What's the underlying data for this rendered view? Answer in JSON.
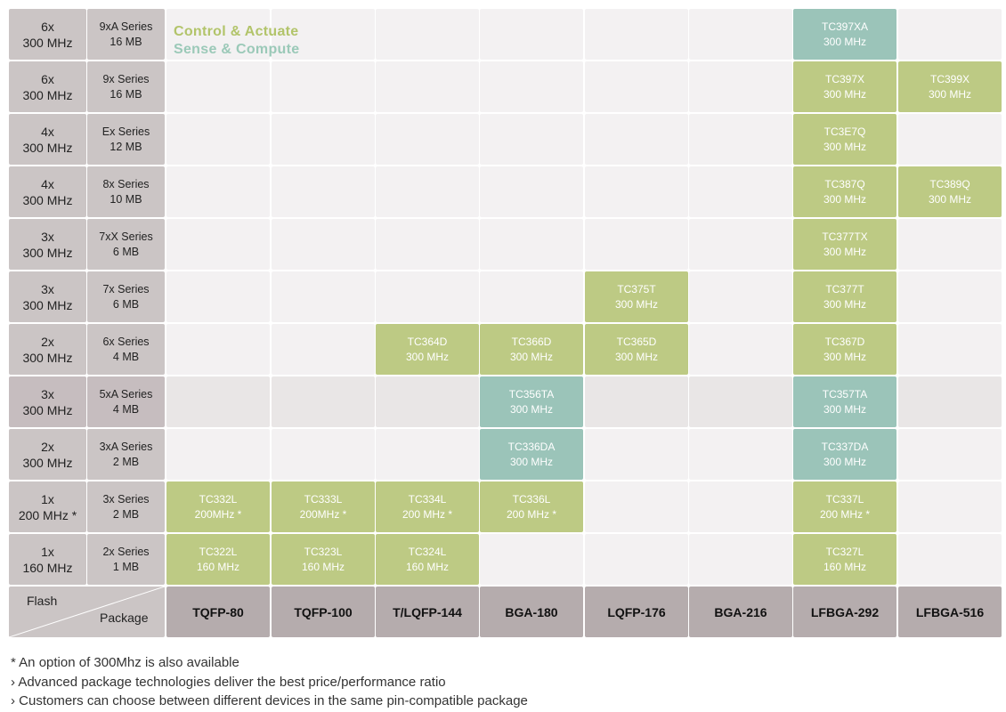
{
  "legend": {
    "control": "Control & Actuate",
    "sense": "Sense & Compute",
    "control_color": "#b2c46a",
    "sense_color": "#9bc9b8"
  },
  "rows": [
    {
      "cores": "6x",
      "freq": "300 MHz",
      "series": "9xA Series",
      "flash": "16 MB",
      "cells": [
        null,
        null,
        null,
        null,
        null,
        null,
        {
          "name": "TC397XA",
          "freq": "300 MHz",
          "type": "sense"
        },
        null
      ]
    },
    {
      "cores": "6x",
      "freq": "300 MHz",
      "series": "9x Series",
      "flash": "16 MB",
      "cells": [
        null,
        null,
        null,
        null,
        null,
        null,
        {
          "name": "TC397X",
          "freq": "300 MHz",
          "type": "control"
        },
        {
          "name": "TC399X",
          "freq": "300 MHz",
          "type": "control"
        }
      ]
    },
    {
      "cores": "4x",
      "freq": "300 MHz",
      "series": "Ex Series",
      "flash": "12 MB",
      "cells": [
        null,
        null,
        null,
        null,
        null,
        null,
        {
          "name": "TC3E7Q",
          "freq": "300 MHz",
          "type": "control"
        },
        null
      ]
    },
    {
      "cores": "4x",
      "freq": "300 MHz",
      "series": "8x Series",
      "flash": "10 MB",
      "cells": [
        null,
        null,
        null,
        null,
        null,
        null,
        {
          "name": "TC387Q",
          "freq": "300 MHz",
          "type": "control"
        },
        {
          "name": "TC389Q",
          "freq": "300 MHz",
          "type": "control"
        }
      ]
    },
    {
      "cores": "3x",
      "freq": "300 MHz",
      "series": "7xX Series",
      "flash": "6 MB",
      "cells": [
        null,
        null,
        null,
        null,
        null,
        null,
        {
          "name": "TC377TX",
          "freq": "300 MHz",
          "type": "control"
        },
        null
      ]
    },
    {
      "cores": "3x",
      "freq": "300 MHz",
      "series": "7x Series",
      "flash": "6 MB",
      "cells": [
        null,
        null,
        null,
        null,
        {
          "name": "TC375T",
          "freq": "300 MHz",
          "type": "control"
        },
        null,
        {
          "name": "TC377T",
          "freq": "300 MHz",
          "type": "control"
        },
        null
      ]
    },
    {
      "cores": "2x",
      "freq": "300 MHz",
      "series": "6x Series",
      "flash": "4 MB",
      "cells": [
        null,
        null,
        {
          "name": "TC364D",
          "freq": "300 MHz",
          "type": "control"
        },
        {
          "name": "TC366D",
          "freq": "300 MHz",
          "type": "control"
        },
        {
          "name": "TC365D",
          "freq": "300 MHz",
          "type": "control"
        },
        null,
        {
          "name": "TC367D",
          "freq": "300 MHz",
          "type": "control"
        },
        null
      ]
    },
    {
      "cores": "3x",
      "freq": "300 MHz",
      "series": "5xA Series",
      "flash": "4 MB",
      "alt": true,
      "cells": [
        null,
        null,
        null,
        {
          "name": "TC356TA",
          "freq": "300 MHz",
          "type": "sense"
        },
        null,
        null,
        {
          "name": "TC357TA",
          "freq": "300 MHz",
          "type": "sense"
        },
        null
      ]
    },
    {
      "cores": "2x",
      "freq": "300 MHz",
      "series": "3xA Series",
      "flash": "2 MB",
      "cells": [
        null,
        null,
        null,
        {
          "name": "TC336DA",
          "freq": "300 MHz",
          "type": "sense"
        },
        null,
        null,
        {
          "name": "TC337DA",
          "freq": "300 MHz",
          "type": "sense"
        },
        null
      ]
    },
    {
      "cores": "1x",
      "freq": "200 MHz *",
      "series": "3x Series",
      "flash": "2 MB",
      "cells": [
        {
          "name": "TC332L",
          "freq": "200MHz *",
          "type": "control"
        },
        {
          "name": "TC333L",
          "freq": "200MHz *",
          "type": "control"
        },
        {
          "name": "TC334L",
          "freq": "200 MHz *",
          "type": "control"
        },
        {
          "name": "TC336L",
          "freq": "200 MHz *",
          "type": "control"
        },
        null,
        null,
        {
          "name": "TC337L",
          "freq": "200 MHz *",
          "type": "control"
        },
        null
      ]
    },
    {
      "cores": "1x",
      "freq": "160 MHz",
      "series": "2x Series",
      "flash": "1 MB",
      "cells": [
        {
          "name": "TC322L",
          "freq": "160 MHz",
          "type": "control"
        },
        {
          "name": "TC323L",
          "freq": "160 MHz",
          "type": "control"
        },
        {
          "name": "TC324L",
          "freq": "160 MHz",
          "type": "control"
        },
        null,
        null,
        null,
        {
          "name": "TC327L",
          "freq": "160 MHz",
          "type": "control"
        },
        null
      ]
    }
  ],
  "corner": {
    "flash": "Flash",
    "package": "Package"
  },
  "packages": [
    "TQFP-80",
    "TQFP-100",
    "T/LQFP-144",
    "BGA-180",
    "LQFP-176",
    "BGA-216",
    "LFBGA-292",
    "LFBGA-516"
  ],
  "notes": [
    "*  An option of 300Mhz is also available",
    "›  Advanced package technologies deliver  the best price/performance ratio",
    "›  Customers can choose between different  devices in the same pin-compatible package"
  ]
}
